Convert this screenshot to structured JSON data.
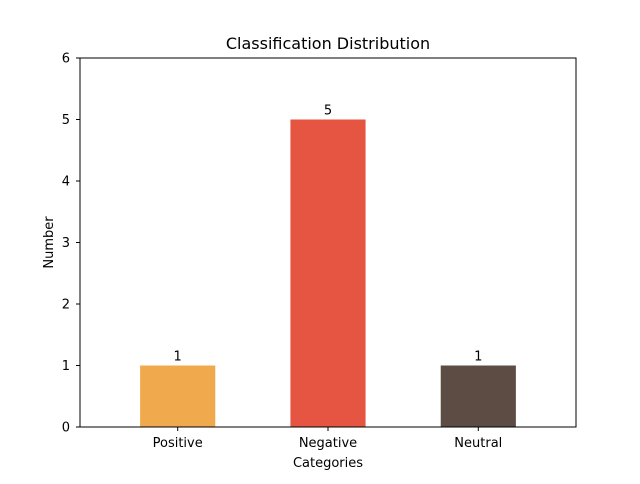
{
  "chart_data": {
    "type": "bar",
    "title": "Classification Distribution",
    "xlabel": "Categories",
    "ylabel": "Number",
    "categories": [
      "Positive",
      "Negative",
      "Neutral"
    ],
    "values": [
      1,
      5,
      1
    ],
    "colors": [
      "#f0a94c",
      "#e55541",
      "#5c4c44"
    ],
    "ylim": [
      0,
      6
    ],
    "yticks": [
      0,
      1,
      2,
      3,
      4,
      5,
      6
    ],
    "data_labels": [
      "1",
      "5",
      "1"
    ],
    "grid": false,
    "legend": "none"
  }
}
